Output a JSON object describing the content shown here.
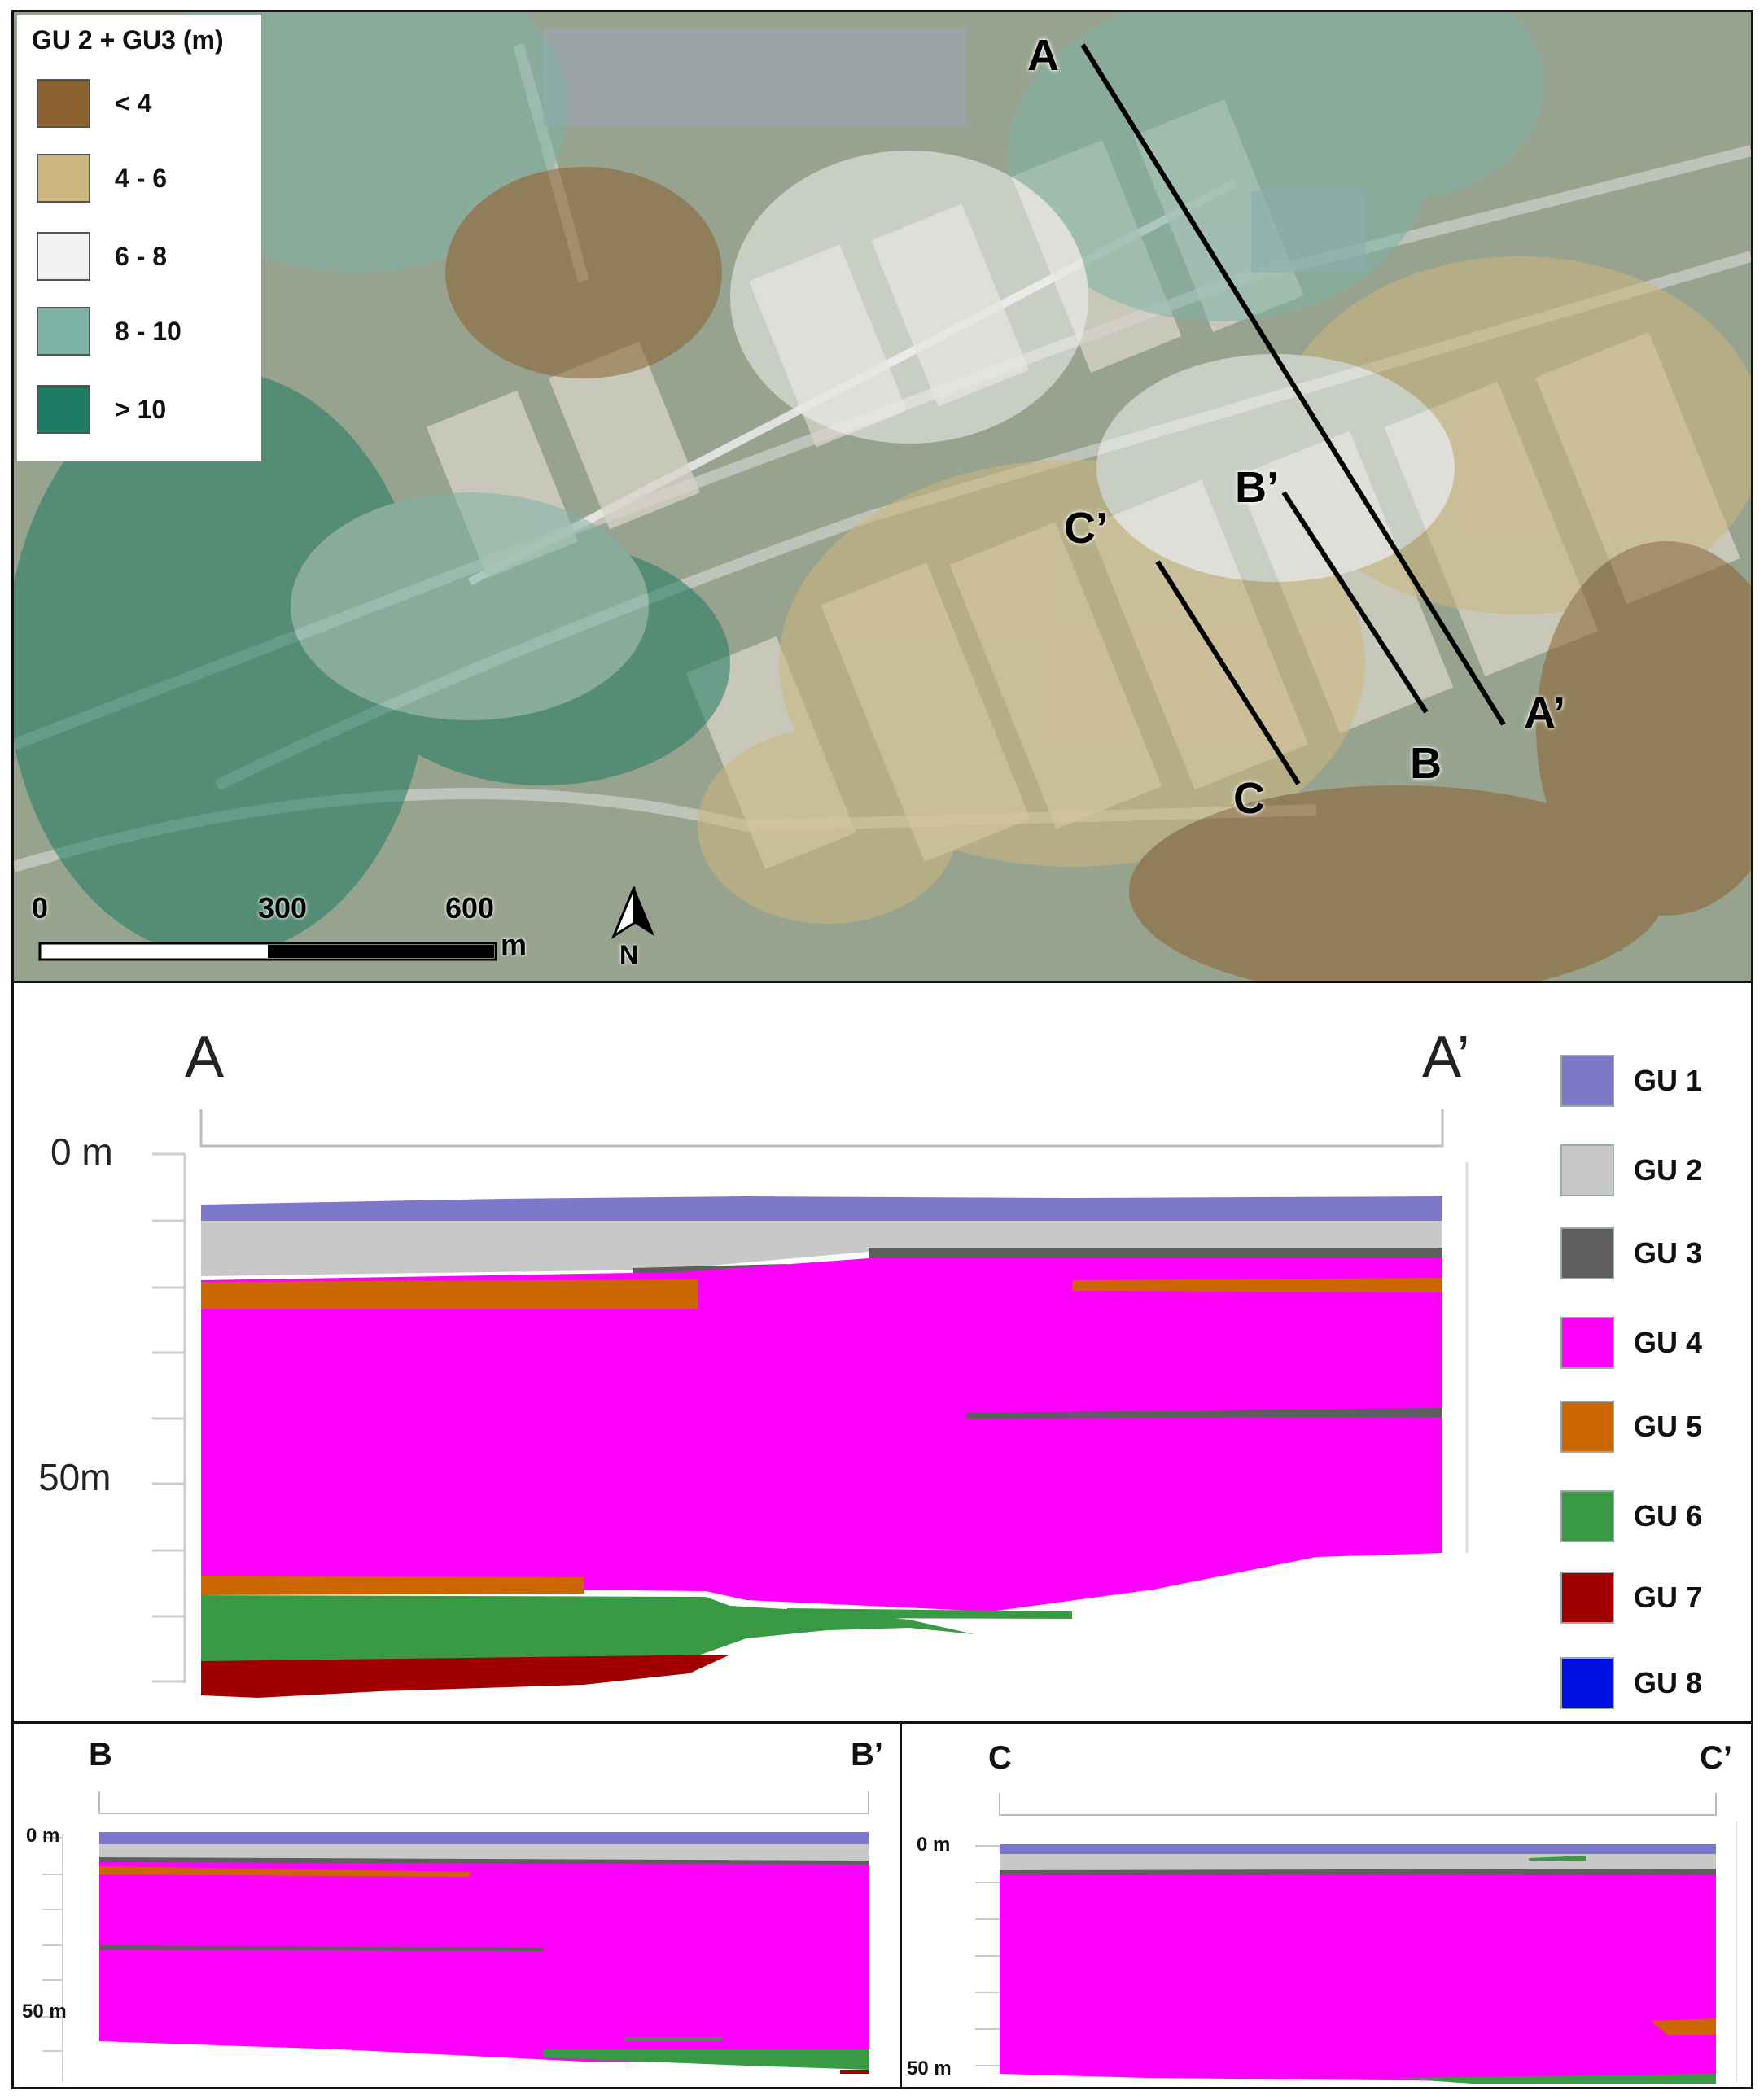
{
  "map": {
    "legend": {
      "title": "GU 2 + GU3 (m)",
      "items": [
        {
          "label": "< 4",
          "color": "#8b6230"
        },
        {
          "label": "4 - 6",
          "color": "#cdb77e"
        },
        {
          "label": "6 - 8",
          "color": "#f2f2f2"
        },
        {
          "label": "8 - 10",
          "color": "#7fb3a7"
        },
        {
          "label": "> 10",
          "color": "#1f7a63"
        }
      ]
    },
    "section_labels": {
      "a": "A",
      "a_prime": "A’",
      "b": "B",
      "b_prime": "B’",
      "c": "C",
      "c_prime": "C’"
    },
    "scale_bar": {
      "tick_0": "0",
      "tick_300": "300",
      "tick_600": "600",
      "unit": "m"
    },
    "north_arrow": {
      "label": "N",
      "icon": "north-arrow-icon"
    }
  },
  "section_aa": {
    "start_label": "A",
    "end_label": "A’",
    "depth_top": "0 m",
    "depth_bottom": "50m"
  },
  "section_bb": {
    "start_label": "B",
    "end_label": "B’",
    "depth_top": "0 m",
    "depth_bottom": "50 m"
  },
  "section_cc": {
    "start_label": "C",
    "end_label": "C’",
    "depth_top": "0 m",
    "depth_bottom": "50 m"
  },
  "units_legend": [
    {
      "label": "GU 1",
      "color": "#7b78c9"
    },
    {
      "label": "GU 2",
      "color": "#c8c8c8"
    },
    {
      "label": "GU 3",
      "color": "#5e5e5e"
    },
    {
      "label": "GU 4",
      "color": "#ff00ff"
    },
    {
      "label": "GU 5",
      "color": "#cc6600"
    },
    {
      "label": "GU 6",
      "color": "#3a9a44"
    },
    {
      "label": "GU 7",
      "color": "#a00000"
    },
    {
      "label": "GU 8",
      "color": "#0010e0"
    }
  ]
}
